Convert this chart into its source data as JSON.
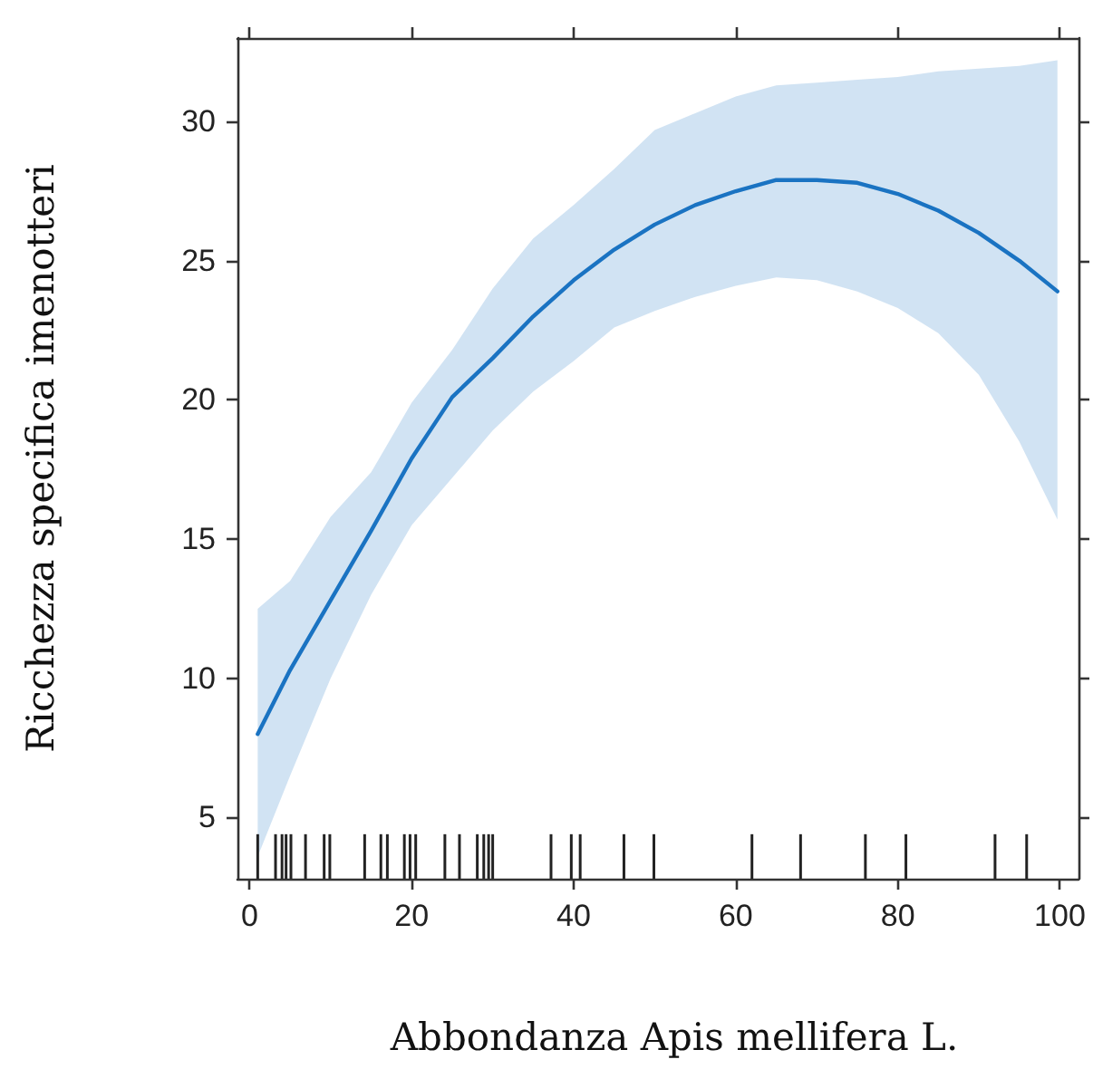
{
  "chart_data": {
    "type": "line",
    "xlabel": "Abbondanza Apis mellifera L.",
    "ylabel": "Ricchezza specifica imenotteri",
    "xlim": [
      -1.5,
      102.3
    ],
    "xticks": [
      0,
      20,
      40,
      60,
      80,
      100
    ],
    "ylim": [
      2.8,
      33
    ],
    "yticks": [
      5,
      10,
      15,
      20,
      25,
      30
    ],
    "grid": false,
    "marker": "none",
    "line_style": "solid",
    "series": [
      {
        "color": "#1a73c2",
        "x": [
          1,
          5,
          10,
          15,
          20,
          25,
          30,
          35,
          40,
          45,
          50,
          55,
          60,
          65,
          70,
          75,
          80,
          85,
          90,
          95,
          99.7
        ],
        "values": [
          8.0,
          10.3,
          12.8,
          15.3,
          17.9,
          20.1,
          21.5,
          23.0,
          24.3,
          25.4,
          26.3,
          27.0,
          27.5,
          27.9,
          27.9,
          27.8,
          27.4,
          26.8,
          26.0,
          25.0,
          23.9
        ],
        "lower": [
          3.6,
          6.5,
          10.0,
          13.0,
          15.5,
          17.2,
          18.9,
          20.3,
          21.4,
          22.6,
          23.2,
          23.7,
          24.1,
          24.4,
          24.3,
          23.9,
          23.3,
          22.4,
          20.9,
          18.5,
          15.7
        ],
        "upper": [
          12.5,
          13.5,
          15.8,
          17.4,
          19.9,
          21.8,
          24.0,
          25.8,
          27.0,
          28.3,
          29.7,
          30.3,
          30.9,
          31.3,
          31.4,
          31.5,
          31.6,
          31.8,
          31.9,
          32.0,
          32.2
        ]
      },
      {
        "type": "bar",
        "color": "#222222",
        "x": [
          1.0,
          3.2,
          4.0,
          4.5,
          5.1,
          6.9,
          9.2,
          9.9,
          14.2,
          16.2,
          17.0,
          19.1,
          19.8,
          20.5,
          24.1,
          25.9,
          28.1,
          28.9,
          29.5,
          30.0,
          37.2,
          39.7,
          40.8,
          46.2,
          49.9,
          62.0,
          68.0,
          76.0,
          81.0,
          92.0,
          95.9
        ],
        "values": [
          4.4,
          4.4,
          4.4,
          4.4,
          4.4,
          4.4,
          4.4,
          4.4,
          4.4,
          4.4,
          4.4,
          4.4,
          4.4,
          4.4,
          4.4,
          4.4,
          4.4,
          4.4,
          4.4,
          4.4,
          4.4,
          4.4,
          4.4,
          4.4,
          4.4,
          4.4,
          4.4,
          4.4,
          4.4,
          4.4,
          4.4
        ]
      }
    ]
  }
}
